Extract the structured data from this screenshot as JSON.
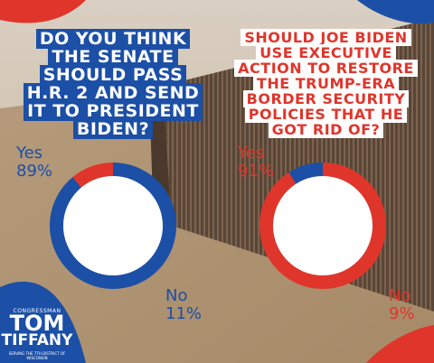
{
  "questions": {
    "left": "Do you think the Senate should pass H.R. 2 and send it to President Biden?",
    "right": "Should Joe Biden use executive action to restore the Trump-era border security policies that he got rid of?"
  },
  "colors": {
    "blue": "#1c4fa6",
    "red": "#e0352b",
    "white": "#ffffff"
  },
  "logo": {
    "small": "CONGRESSMAN",
    "first": "TOM",
    "last": "TIFFANY",
    "footer": "SERVING THE 7TH DISTRICT OF WISCONSIN"
  },
  "chart_data": [
    {
      "type": "pie",
      "title": "Do you think the Senate should pass H.R. 2 and send it to President Biden?",
      "categories": [
        "Yes",
        "No"
      ],
      "values": [
        89,
        11
      ],
      "labels": [
        "Yes\n89%",
        "No\n11%"
      ],
      "colors": [
        "#1c4fa6",
        "#e0352b"
      ]
    },
    {
      "type": "pie",
      "title": "Should Joe Biden use executive action to restore the Trump-era border security policies that he got rid of?",
      "categories": [
        "Yes",
        "No"
      ],
      "values": [
        91,
        9
      ],
      "labels": [
        "Yes\n91%",
        "No\n9%"
      ],
      "colors": [
        "#e0352b",
        "#1c4fa6"
      ]
    }
  ]
}
